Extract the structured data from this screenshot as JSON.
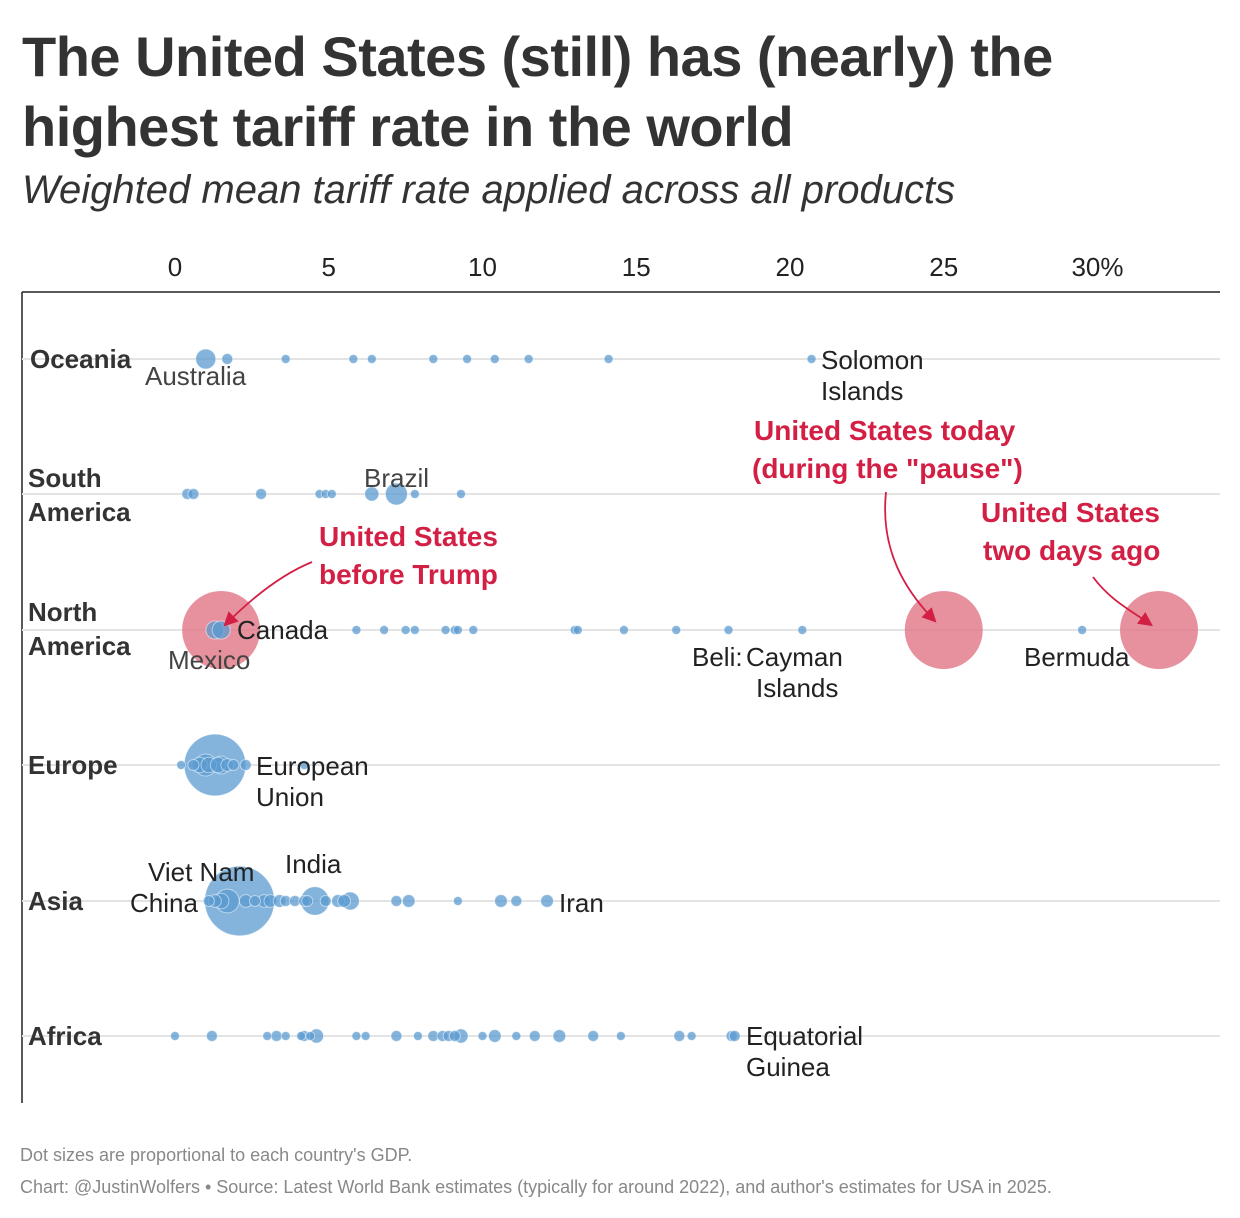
{
  "chart_data": {
    "type": "scatter",
    "title": "The United States (still) has (nearly) the highest tariff rate in the world",
    "subtitle": "Weighted mean tariff rate applied across all products",
    "xlim": [
      0,
      34
    ],
    "xticks": [
      {
        "v": 0,
        "label": "0"
      },
      {
        "v": 5,
        "label": "5"
      },
      {
        "v": 10,
        "label": "10"
      },
      {
        "v": 15,
        "label": "15"
      },
      {
        "v": 20,
        "label": "20"
      },
      {
        "v": 25,
        "label": "25"
      },
      {
        "v": 30,
        "label": "30%"
      }
    ],
    "grid": true,
    "colors": {
      "dots": "#5b9bd0",
      "usa": "#e07585",
      "annotation": "#d41f45"
    },
    "categories": [
      "Oceania",
      "South America",
      "North America",
      "Europe",
      "Asia",
      "Africa"
    ],
    "series": [
      {
        "region": "Oceania",
        "points": [
          [
            1.0,
            5
          ],
          [
            1.7,
            1.5
          ],
          [
            3.6,
            1
          ],
          [
            5.8,
            1
          ],
          [
            6.4,
            1
          ],
          [
            8.4,
            1
          ],
          [
            9.5,
            1
          ],
          [
            10.4,
            1
          ],
          [
            11.5,
            1
          ],
          [
            14.1,
            1
          ],
          [
            20.7,
            1
          ]
        ]
      },
      {
        "region": "South America",
        "points": [
          [
            0.4,
            1.5
          ],
          [
            0.6,
            1.5
          ],
          [
            2.8,
            1.5
          ],
          [
            4.7,
            1
          ],
          [
            4.9,
            1
          ],
          [
            5.1,
            1
          ],
          [
            6.4,
            2.5
          ],
          [
            7.2,
            6
          ],
          [
            7.8,
            1
          ],
          [
            9.3,
            1
          ]
        ]
      },
      {
        "region": "North America",
        "points": [
          [
            1.3,
            4
          ],
          [
            1.5,
            4
          ],
          [
            5.9,
            1
          ],
          [
            6.8,
            1
          ],
          [
            7.5,
            1
          ],
          [
            7.8,
            1
          ],
          [
            8.8,
            1
          ],
          [
            9.1,
            1
          ],
          [
            9.2,
            1
          ],
          [
            9.7,
            1
          ],
          [
            13.0,
            1
          ],
          [
            13.1,
            1
          ],
          [
            14.6,
            1
          ],
          [
            16.3,
            1
          ],
          [
            18.0,
            1
          ],
          [
            20.4,
            1
          ],
          [
            29.5,
            1
          ]
        ]
      },
      {
        "region": "Europe",
        "points": [
          [
            0.2,
            1
          ],
          [
            0.6,
            1.5
          ],
          [
            0.8,
            3
          ],
          [
            1.0,
            6
          ],
          [
            1.1,
            3
          ],
          [
            1.3,
            47
          ],
          [
            1.4,
            3
          ],
          [
            1.5,
            4
          ],
          [
            1.7,
            2
          ],
          [
            1.9,
            1.5
          ],
          [
            2.3,
            1.5
          ],
          [
            4.2,
            1
          ]
        ]
      },
      {
        "region": "Asia",
        "points": [
          [
            1.1,
            1.5
          ],
          [
            1.3,
            2
          ],
          [
            1.5,
            3
          ],
          [
            1.7,
            7
          ],
          [
            2.1,
            60
          ],
          [
            2.3,
            2
          ],
          [
            2.6,
            1.5
          ],
          [
            2.9,
            2
          ],
          [
            3.1,
            2
          ],
          [
            3.4,
            2
          ],
          [
            3.6,
            1.5
          ],
          [
            3.9,
            1.5
          ],
          [
            4.2,
            1.5
          ],
          [
            4.3,
            1.5
          ],
          [
            4.55,
            10
          ],
          [
            4.9,
            1.5
          ],
          [
            5.3,
            2
          ],
          [
            5.5,
            2
          ],
          [
            5.7,
            4
          ],
          [
            7.2,
            1.5
          ],
          [
            7.6,
            2
          ],
          [
            9.2,
            1
          ],
          [
            10.6,
            2
          ],
          [
            11.1,
            1.5
          ],
          [
            12.1,
            2
          ]
        ]
      },
      {
        "region": "Africa",
        "points": [
          [
            0,
            1
          ],
          [
            1.2,
            1.5
          ],
          [
            3.0,
            1
          ],
          [
            3.3,
            1.5
          ],
          [
            3.6,
            1
          ],
          [
            4.1,
            1
          ],
          [
            4.2,
            1.5
          ],
          [
            4.4,
            1
          ],
          [
            4.6,
            2.5
          ],
          [
            5.9,
            1
          ],
          [
            6.2,
            1
          ],
          [
            7.2,
            1.5
          ],
          [
            7.9,
            1
          ],
          [
            8.4,
            1.5
          ],
          [
            8.7,
            1.5
          ],
          [
            8.9,
            1.5
          ],
          [
            9.1,
            1.5
          ],
          [
            9.3,
            2.5
          ],
          [
            10.0,
            1
          ],
          [
            10.4,
            2
          ],
          [
            11.1,
            1
          ],
          [
            11.7,
            1.5
          ],
          [
            12.5,
            2
          ],
          [
            13.6,
            1.5
          ],
          [
            14.5,
            1
          ],
          [
            16.4,
            1.5
          ],
          [
            16.8,
            1
          ],
          [
            18.1,
            1.5
          ],
          [
            18.2,
            1.5
          ]
        ]
      }
    ],
    "usa": [
      {
        "label": "United States before Trump",
        "value": 1.5,
        "gdp": 75
      },
      {
        "label": "United States today (during the \"pause\")",
        "value": 25.0,
        "gdp": 75
      },
      {
        "label": "United States two days ago",
        "value": 32.0,
        "gdp": 75
      }
    ],
    "country_labels": [
      "Australia",
      "Solomon",
      "Islands",
      "Brazil",
      "Canada",
      "Mexico",
      "Beli:",
      "Cayman",
      "Islands",
      "Bermuda",
      "European",
      "Union",
      "Viet Nam",
      "China",
      "India",
      "Iran",
      "Equatorial",
      "Guinea"
    ],
    "annotations": {
      "before": [
        "United States",
        "before Trump"
      ],
      "today": [
        "United States today",
        "(during the \"pause\")"
      ],
      "ago": [
        "United States",
        "two days ago"
      ]
    },
    "notes": [
      "Dot sizes are proportional to each country's GDP.",
      "Chart: @JustinWolfers • Source: Latest World Bank estimates (typically for around 2022), and author's estimates for USA in 2025."
    ]
  }
}
